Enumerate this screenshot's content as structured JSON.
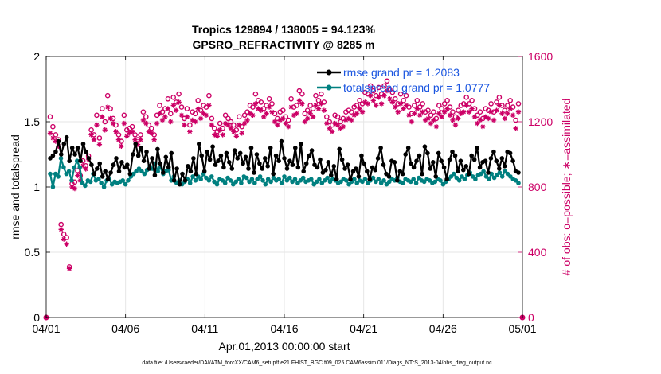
{
  "chart_data": {
    "type": "line",
    "title": "Tropics 129894 / 138005 = 94.123%",
    "subtitle": "GPSRO_REFRACTIVITY @ 8285 m",
    "xlabel": "Apr.01,2013 00:00:00 start",
    "ylabel_left": "rmse and totalspread",
    "ylabel_right": "# of obs: o=possible; ∗=assimilated",
    "footer": "data file: /Users/raeder/DAI/ATM_forcXX/CAM6_setup/f.e21.FHIST_BGC.f09_025.CAM6assim.011/Diags_NTrS_2013-04/obs_diag_output.nc",
    "x_range_days": [
      0,
      30
    ],
    "x_ticks": [
      {
        "day": 0,
        "label": "04/01"
      },
      {
        "day": 5,
        "label": "04/06"
      },
      {
        "day": 10,
        "label": "04/11"
      },
      {
        "day": 15,
        "label": "04/16"
      },
      {
        "day": 20,
        "label": "04/21"
      },
      {
        "day": 25,
        "label": "04/26"
      },
      {
        "day": 30,
        "label": "05/01"
      }
    ],
    "ylim_left": [
      0,
      2
    ],
    "yticks_left": [
      "0",
      "0.5",
      "1",
      "1.5",
      "2"
    ],
    "ylim_right": [
      0,
      1600
    ],
    "yticks_right": [
      "0",
      "400",
      "800",
      "1200",
      "1600"
    ],
    "grid": true,
    "legend_position": "top-right",
    "colors": {
      "rmse": "#000000",
      "spread": "#008080",
      "obs": "#cc0066",
      "legend_text": "#1a55e0",
      "grid": "#e6e6e6"
    },
    "series": [
      {
        "name": "rmse grand pr = 1.2083",
        "axis": "left",
        "values": [
          1.22,
          1.24,
          1.27,
          1.35,
          1.25,
          1.33,
          1.38,
          1.2,
          1.3,
          1.25,
          1.3,
          1.2,
          1.33,
          1.27,
          1.22,
          1.17,
          1.1,
          1.14,
          1.18,
          1.08,
          1.12,
          1.06,
          1.11,
          1.17,
          1.22,
          1.12,
          1.19,
          1.15,
          1.17,
          1.1,
          1.25,
          1.33,
          1.24,
          1.3,
          1.2,
          1.27,
          1.14,
          1.22,
          1.09,
          1.29,
          1.18,
          1.11,
          1.23,
          1.15,
          1.26,
          1.05,
          1.14,
          1.02,
          1.1,
          1.05,
          1.16,
          1.12,
          1.22,
          1.1,
          1.33,
          1.24,
          1.12,
          1.27,
          1.21,
          1.31,
          1.17,
          1.2,
          1.24,
          1.15,
          1.26,
          1.19,
          1.14,
          1.28,
          1.22,
          1.26,
          1.18,
          1.23,
          1.14,
          1.3,
          1.11,
          1.25,
          1.18,
          1.14,
          1.22,
          1.16,
          1.3,
          1.1,
          1.24,
          1.2,
          1.35,
          1.22,
          1.14,
          1.2,
          1.17,
          1.3,
          1.15,
          1.33,
          1.12,
          1.18,
          1.24,
          1.28,
          1.17,
          1.15,
          1.21,
          1.11,
          1.13,
          1.19,
          1.09,
          1.16,
          1.06,
          1.29,
          1.21,
          1.14,
          1.17,
          1.06,
          1.12,
          1.14,
          1.08,
          1.24,
          1.18,
          1.12,
          1.06,
          1.15,
          1.13,
          1.22,
          1.3,
          1.17,
          1.1,
          1.08,
          1.2,
          1.19,
          1.05,
          1.12,
          1.1,
          1.25,
          1.3,
          1.18,
          1.15,
          1.2,
          1.24,
          1.1,
          1.31,
          1.26,
          1.14,
          1.19,
          1.08,
          1.26,
          1.2,
          1.15,
          1.06,
          1.21,
          1.27,
          1.24,
          1.12,
          1.2,
          1.13,
          1.16,
          1.1,
          1.24,
          1.21,
          1.3,
          1.15,
          1.19,
          1.2,
          1.11,
          1.22,
          1.27,
          1.2,
          1.14,
          1.22,
          1.16,
          1.27,
          1.26,
          1.2,
          1.12,
          1.11
        ]
      },
      {
        "name": "totalspread grand pr = 1.0777",
        "axis": "left",
        "values": [
          1.1,
          1.0,
          1.1,
          1.08,
          1.22,
          1.15,
          1.1,
          1.12,
          1.05,
          1.15,
          1.2,
          1.15,
          1.03,
          1.01,
          1.05,
          1.04,
          1.1,
          1.05,
          1.06,
          1.03,
          1.0,
          1.05,
          1.06,
          1.02,
          1.04,
          1.03,
          1.04,
          1.05,
          1.02,
          1.05,
          1.08,
          1.1,
          1.12,
          1.14,
          1.12,
          1.1,
          1.13,
          1.16,
          1.14,
          1.18,
          1.12,
          1.15,
          1.1,
          1.12,
          1.13,
          1.05,
          1.08,
          1.03,
          1.05,
          1.02,
          1.04,
          1.06,
          1.03,
          1.08,
          1.05,
          1.08,
          1.06,
          1.1,
          1.07,
          1.05,
          1.08,
          1.04,
          1.02,
          1.06,
          1.05,
          1.03,
          1.07,
          1.05,
          1.02,
          1.04,
          1.06,
          1.03,
          1.08,
          1.07,
          1.04,
          1.06,
          1.03,
          1.06,
          1.08,
          1.05,
          1.02,
          1.06,
          1.04,
          1.07,
          1.05,
          1.06,
          1.03,
          1.08,
          1.05,
          1.07,
          1.04,
          1.06,
          1.03,
          1.05,
          1.07,
          1.04,
          1.05,
          1.06,
          1.02,
          1.04,
          1.06,
          1.03,
          1.05,
          1.07,
          1.04,
          1.06,
          1.05,
          1.03,
          1.04,
          1.06,
          1.05,
          1.02,
          1.04,
          1.06,
          1.03,
          1.05,
          1.04,
          1.06,
          1.03,
          1.05,
          1.07,
          1.04,
          1.06,
          1.03,
          1.05,
          1.02,
          1.04,
          1.06,
          1.05,
          1.07,
          1.04,
          1.03,
          1.06,
          1.05,
          1.04,
          1.06,
          1.03,
          1.07,
          1.05,
          1.04,
          1.06,
          1.05,
          1.03,
          1.04,
          1.06,
          1.05,
          1.02,
          1.04,
          1.06,
          1.08,
          1.1,
          1.07,
          1.05,
          1.08,
          1.06,
          1.09,
          1.11,
          1.08,
          1.06,
          1.09,
          1.1,
          1.12,
          1.08,
          1.06,
          1.1,
          1.07,
          1.09,
          1.11,
          1.08,
          1.12,
          1.1,
          1.08,
          1.06,
          1.05,
          1.03
        ]
      },
      {
        "name": "possible",
        "axis": "right",
        "values": [
          1230,
          1170,
          1120,
          1090,
          570,
          510,
          490,
          310,
          820,
          830,
          900,
          870,
          960,
          930,
          990,
          1150,
          1120,
          1240,
          1100,
          1280,
          1200,
          1360,
          1280,
          1220,
          1180,
          1120,
          1080,
          1240,
          1150,
          1160,
          1170,
          1120,
          1090,
          1120,
          1260,
          1230,
          1180,
          1160,
          1120,
          1240,
          1300,
          1260,
          1280,
          1340,
          1250,
          1350,
          1320,
          1370,
          1290,
          1220,
          1280,
          1180,
          1260,
          1250,
          1330,
          1270,
          1300,
          1290,
          1360,
          1220,
          1160,
          1140,
          1190,
          1160,
          1240,
          1220,
          1200,
          1180,
          1150,
          1230,
          1170,
          1240,
          1260,
          1300,
          1290,
          1370,
          1330,
          1320,
          1280,
          1300,
          1340,
          1310,
          1250,
          1220,
          1260,
          1270,
          1230,
          1210,
          1340,
          1290,
          1300,
          1390,
          1370,
          1250,
          1270,
          1300,
          1280,
          1360,
          1330,
          1370,
          1320,
          1230,
          1200,
          1180,
          1240,
          1230,
          1200,
          1220,
          1260,
          1270,
          1260,
          1290,
          1300,
          1330,
          1310,
          1380,
          1370,
          1420,
          1390,
          1360,
          1410,
          1370,
          1420,
          1450,
          1400,
          1380,
          1340,
          1310,
          1370,
          1330,
          1360,
          1290,
          1250,
          1300,
          1330,
          1290,
          1310,
          1260,
          1270,
          1240,
          1260,
          1220,
          1300,
          1280,
          1310,
          1330,
          1290,
          1260,
          1230,
          1270,
          1300,
          1310,
          1350,
          1310,
          1330,
          1280,
          1240,
          1260,
          1220,
          1280,
          1270,
          1310,
          1260,
          1320,
          1350,
          1300,
          1270,
          1300,
          1330,
          1290,
          1210,
          1310
        ]
      },
      {
        "name": "assimilated",
        "axis": "right",
        "values": [
          1130,
          1100,
          1080,
          1050,
          540,
          480,
          450,
          300,
          800,
          790,
          870,
          840,
          930,
          910,
          970,
          1120,
          1090,
          1180,
          1060,
          1230,
          1150,
          1290,
          1220,
          1190,
          1140,
          1090,
          1050,
          1190,
          1110,
          1130,
          1140,
          1090,
          1060,
          1090,
          1210,
          1190,
          1140,
          1130,
          1090,
          1190,
          1250,
          1210,
          1230,
          1280,
          1200,
          1300,
          1270,
          1320,
          1240,
          1180,
          1230,
          1140,
          1210,
          1200,
          1280,
          1220,
          1250,
          1240,
          1300,
          1180,
          1120,
          1110,
          1150,
          1120,
          1190,
          1180,
          1160,
          1140,
          1110,
          1180,
          1130,
          1190,
          1210,
          1250,
          1240,
          1310,
          1280,
          1270,
          1230,
          1250,
          1290,
          1260,
          1200,
          1180,
          1210,
          1220,
          1190,
          1170,
          1290,
          1240,
          1250,
          1330,
          1310,
          1200,
          1220,
          1250,
          1230,
          1300,
          1280,
          1310,
          1270,
          1190,
          1160,
          1140,
          1190,
          1180,
          1160,
          1170,
          1210,
          1220,
          1210,
          1240,
          1250,
          1280,
          1260,
          1320,
          1310,
          1360,
          1330,
          1300,
          1350,
          1310,
          1360,
          1390,
          1340,
          1320,
          1290,
          1260,
          1310,
          1280,
          1300,
          1240,
          1200,
          1250,
          1280,
          1240,
          1260,
          1210,
          1220,
          1190,
          1210,
          1170,
          1250,
          1230,
          1260,
          1280,
          1240,
          1210,
          1180,
          1220,
          1250,
          1260,
          1300,
          1260,
          1280,
          1230,
          1190,
          1210,
          1170,
          1230,
          1220,
          1260,
          1210,
          1270,
          1300,
          1250,
          1220,
          1250,
          1280,
          1240,
          1160,
          1260
        ]
      }
    ]
  }
}
